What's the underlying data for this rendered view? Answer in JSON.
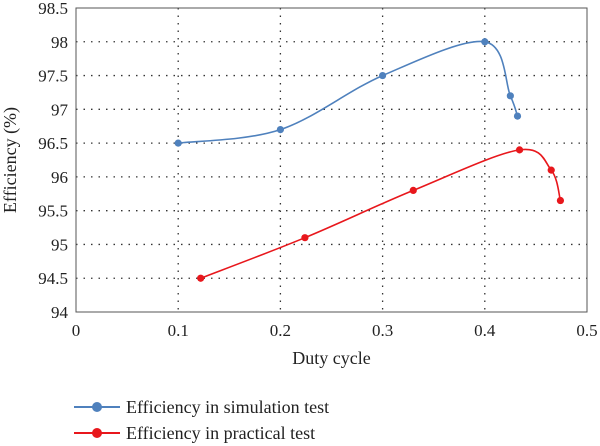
{
  "chart_data": {
    "type": "line",
    "xlabel": "Duty cycle",
    "ylabel": "Efficiency (%)",
    "xlim": [
      0,
      0.5
    ],
    "ylim": [
      94,
      98.5
    ],
    "xticks": [
      0,
      0.1,
      0.2,
      0.3,
      0.4,
      0.5
    ],
    "xtick_labels": [
      "0",
      "0.1",
      "0.2",
      "0.3",
      "0.4",
      "0.5"
    ],
    "yticks": [
      94,
      94.5,
      95,
      95.5,
      96,
      96.5,
      97,
      97.5,
      98,
      98.5
    ],
    "ytick_labels": [
      "94",
      "94.5",
      "95",
      "95.5",
      "96",
      "96.5",
      "97",
      "97.5",
      "98",
      "98.5"
    ],
    "grid": true,
    "legend_position": "bottom",
    "series": [
      {
        "name": "Efficiency in simulation test",
        "color": "#4f81bd",
        "x": [
          0.1,
          0.2,
          0.3,
          0.4,
          0.425,
          0.432
        ],
        "y": [
          96.5,
          96.7,
          97.5,
          98.0,
          97.2,
          96.9
        ]
      },
      {
        "name": "Efficiency in practical test",
        "color": "#e8171c",
        "x": [
          0.122,
          0.224,
          0.33,
          0.434,
          0.465,
          0.474
        ],
        "y": [
          94.5,
          95.1,
          95.8,
          96.4,
          96.1,
          95.65
        ]
      }
    ]
  }
}
